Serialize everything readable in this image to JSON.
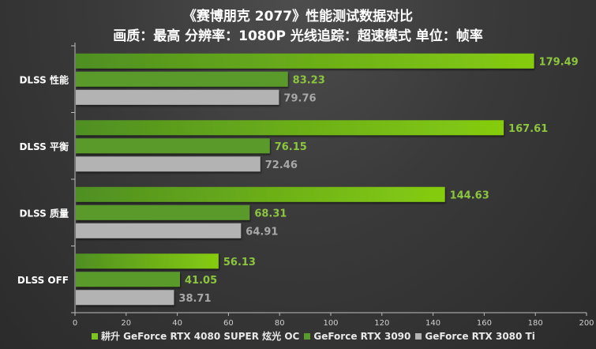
{
  "chart_data": {
    "type": "bar",
    "orientation": "horizontal",
    "title": "《赛博朋克 2077》性能测试数据对比",
    "subtitle": "画质：最高 分辨率：1080P 光线追踪：超速模式  单位：帧率",
    "categories": [
      "DLSS 性能",
      "DLSS 平衡",
      "DLSS 质量",
      "DLSS OFF"
    ],
    "series": [
      {
        "name": "耕升 GeForce RTX 4080 SUPER 炫光 OC",
        "color": "#7cc520",
        "values": [
          179.49,
          167.61,
          144.63,
          56.13
        ]
      },
      {
        "name": "GeForce RTX 3090",
        "color": "#5a9a2a",
        "values": [
          83.23,
          76.15,
          68.31,
          41.05
        ]
      },
      {
        "name": "GeForce RTX 3080 Ti",
        "color": "#b3b3b3",
        "values": [
          79.76,
          72.46,
          64.91,
          38.71
        ]
      }
    ],
    "xlim": [
      0,
      200
    ],
    "xticks": [
      0,
      20,
      40,
      60,
      80,
      100,
      120,
      140,
      160,
      180,
      200
    ],
    "grid": false,
    "legend_position": "bottom",
    "label_colors": [
      "#8cc63f",
      "#8cc63f",
      "#a8a8a8"
    ]
  }
}
